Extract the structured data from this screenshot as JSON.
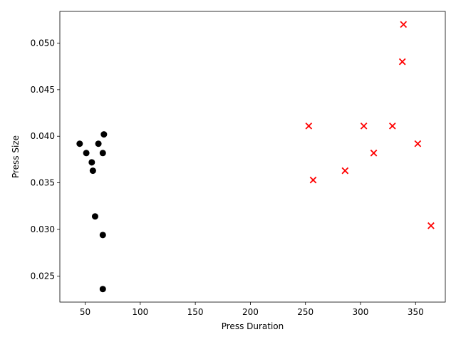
{
  "chart_data": {
    "type": "scatter",
    "title": "",
    "xlabel": "Press Duration",
    "ylabel": "Press Size",
    "xlim": [
      27,
      377
    ],
    "ylim": [
      0.0222,
      0.0534
    ],
    "xticks": [
      50,
      100,
      150,
      200,
      250,
      300,
      350
    ],
    "xtick_labels": [
      "50",
      "100",
      "150",
      "200",
      "250",
      "300",
      "350"
    ],
    "yticks": [
      0.025,
      0.03,
      0.035,
      0.04,
      0.045,
      0.05
    ],
    "ytick_labels": [
      "0.025",
      "0.030",
      "0.035",
      "0.040",
      "0.045",
      "0.050"
    ],
    "grid": false,
    "series": [
      {
        "marker": "circle",
        "color": "#000000",
        "points": [
          {
            "x": 45,
            "y": 0.0392
          },
          {
            "x": 51,
            "y": 0.0382
          },
          {
            "x": 56,
            "y": 0.0372
          },
          {
            "x": 57,
            "y": 0.0363
          },
          {
            "x": 59,
            "y": 0.0314
          },
          {
            "x": 62,
            "y": 0.0392
          },
          {
            "x": 66,
            "y": 0.0382
          },
          {
            "x": 67,
            "y": 0.0402
          },
          {
            "x": 66,
            "y": 0.0294
          },
          {
            "x": 66,
            "y": 0.0236
          }
        ]
      },
      {
        "marker": "x",
        "color": "#ff0000",
        "points": [
          {
            "x": 253,
            "y": 0.0411
          },
          {
            "x": 257,
            "y": 0.0353
          },
          {
            "x": 286,
            "y": 0.0363
          },
          {
            "x": 303,
            "y": 0.0411
          },
          {
            "x": 312,
            "y": 0.0382
          },
          {
            "x": 329,
            "y": 0.0411
          },
          {
            "x": 338,
            "y": 0.048
          },
          {
            "x": 339,
            "y": 0.052
          },
          {
            "x": 352,
            "y": 0.0392
          },
          {
            "x": 364,
            "y": 0.0304
          }
        ]
      }
    ]
  }
}
